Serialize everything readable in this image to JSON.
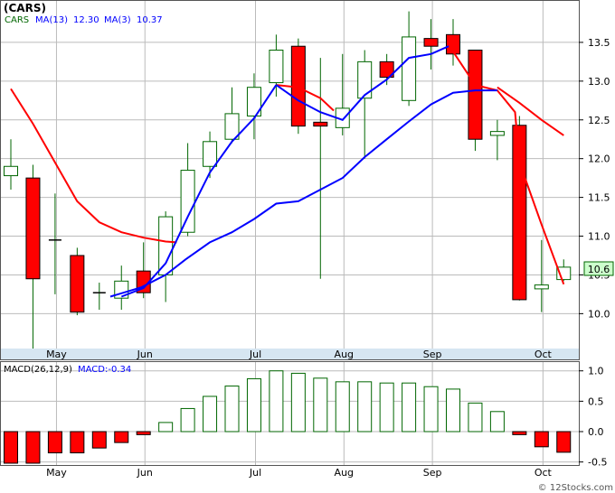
{
  "chart_data": [
    {
      "type": "candlestick",
      "title": "(CARS)",
      "legend": [
        {
          "label": "MA(13)",
          "value": "12.30",
          "color": "#0000ff"
        },
        {
          "label": "MA(3)",
          "value": "10.37",
          "color": "#ff0000"
        }
      ],
      "last_price_label": "10.6",
      "y_ticks": [
        "13.5",
        "13.0",
        "12.5",
        "12.0",
        "11.5",
        "11.0",
        "10.5",
        "10.0"
      ],
      "ylim": [
        9.55,
        14.0
      ],
      "x_labels": [
        {
          "label": "May",
          "i": 1
        },
        {
          "label": "Jun",
          "i": 5
        },
        {
          "label": "Jul",
          "i": 10
        },
        {
          "label": "Aug",
          "i": 14
        },
        {
          "label": "Sep",
          "i": 18
        },
        {
          "label": "Oct",
          "i": 23
        }
      ],
      "candles": [
        {
          "o": 11.78,
          "c": 11.9,
          "h": 12.25,
          "l": 11.6
        },
        {
          "o": 11.75,
          "c": 10.45,
          "h": 11.92,
          "l": 9.55
        },
        {
          "o": 10.95,
          "c": 10.95,
          "h": 11.55,
          "l": 10.25
        },
        {
          "o": 10.75,
          "c": 10.02,
          "h": 10.85,
          "l": 9.98
        },
        {
          "o": 10.27,
          "c": 10.27,
          "h": 10.4,
          "l": 10.05
        },
        {
          "o": 10.2,
          "c": 10.42,
          "h": 10.62,
          "l": 10.05
        },
        {
          "o": 10.55,
          "c": 10.27,
          "h": 10.92,
          "l": 10.2
        },
        {
          "o": 10.5,
          "c": 11.25,
          "h": 11.32,
          "l": 10.15
        },
        {
          "o": 11.05,
          "c": 11.85,
          "h": 12.2,
          "l": 11.0
        },
        {
          "o": 11.9,
          "c": 12.22,
          "h": 12.35,
          "l": 11.75
        },
        {
          "o": 12.25,
          "c": 12.58,
          "h": 12.92,
          "l": 12.2
        },
        {
          "o": 12.55,
          "c": 12.92,
          "h": 13.1,
          "l": 12.25
        },
        {
          "o": 12.98,
          "c": 13.4,
          "h": 13.6,
          "l": 12.8
        },
        {
          "o": 13.45,
          "c": 12.42,
          "h": 13.55,
          "l": 12.32
        },
        {
          "o": 12.47,
          "c": 12.42,
          "h": 13.3,
          "l": 10.45
        },
        {
          "o": 12.4,
          "c": 12.65,
          "h": 13.35,
          "l": 12.3
        },
        {
          "o": 12.78,
          "c": 13.25,
          "h": 13.4,
          "l": 12.0
        },
        {
          "o": 13.25,
          "c": 13.05,
          "h": 13.35,
          "l": 12.95
        },
        {
          "o": 12.75,
          "c": 13.57,
          "h": 13.9,
          "l": 12.68
        },
        {
          "o": 13.55,
          "c": 13.45,
          "h": 13.8,
          "l": 13.15
        },
        {
          "o": 13.6,
          "c": 13.35,
          "h": 13.8,
          "l": 13.2
        },
        {
          "o": 13.4,
          "c": 12.25,
          "h": 13.4,
          "l": 12.1
        },
        {
          "o": 12.3,
          "c": 12.35,
          "h": 12.5,
          "l": 11.98
        },
        {
          "o": 12.43,
          "c": 10.18,
          "h": 12.55,
          "l": 10.17
        },
        {
          "o": 10.32,
          "c": 10.37,
          "h": 10.95,
          "l": 10.02
        },
        {
          "o": 10.44,
          "c": 10.6,
          "h": 10.7,
          "l": 10.42
        }
      ],
      "ma13": [
        {
          "i": 5,
          "v": 10.22
        },
        {
          "i": 6,
          "v": 10.33
        },
        {
          "i": 7,
          "v": 10.65
        },
        {
          "i": 8,
          "v": 11.25
        },
        {
          "i": 9,
          "v": 11.82
        },
        {
          "i": 10,
          "v": 12.22
        },
        {
          "i": 11,
          "v": 12.52
        },
        {
          "i": 12,
          "v": 12.95
        }
      ],
      "ma13_late": [
        {
          "i": 4.5,
          "v": 10.22
        },
        {
          "i": 5.9,
          "v": 10.34
        },
        {
          "i": 7.0,
          "v": 10.5
        },
        {
          "i": 7.9,
          "v": 10.7
        },
        {
          "i": 9.0,
          "v": 10.92
        },
        {
          "i": 10.0,
          "v": 11.05
        },
        {
          "i": 11.0,
          "v": 11.22
        },
        {
          "i": 12.0,
          "v": 11.42
        },
        {
          "i": 13.0,
          "v": 11.45
        },
        {
          "i": 14.0,
          "v": 11.6
        },
        {
          "i": 15.0,
          "v": 11.75
        },
        {
          "i": 16.0,
          "v": 12.02
        },
        {
          "i": 17.0,
          "v": 12.25
        },
        {
          "i": 18.0,
          "v": 12.48
        },
        {
          "i": 19.0,
          "v": 12.7
        },
        {
          "i": 20.0,
          "v": 12.85
        },
        {
          "i": 21.0,
          "v": 12.88
        },
        {
          "i": 22.0,
          "v": 12.88
        }
      ],
      "ma13_mid": [
        {
          "i": 12.0,
          "v": 12.95
        },
        {
          "i": 13.0,
          "v": 12.75
        },
        {
          "i": 14.0,
          "v": 12.6
        },
        {
          "i": 15.0,
          "v": 12.5
        },
        {
          "i": 16.0,
          "v": 12.82
        },
        {
          "i": 17.0,
          "v": 13.02
        },
        {
          "i": 18.0,
          "v": 13.3
        },
        {
          "i": 19.0,
          "v": 13.35
        },
        {
          "i": 19.8,
          "v": 13.45
        }
      ],
      "ma3": [
        {
          "i": 0,
          "v": 12.9
        },
        {
          "i": 1,
          "v": 12.45
        },
        {
          "i": 2,
          "v": 11.95
        },
        {
          "i": 3,
          "v": 11.45
        },
        {
          "i": 4,
          "v": 11.18
        },
        {
          "i": 5,
          "v": 11.05
        },
        {
          "i": 6,
          "v": 10.98
        },
        {
          "i": 7,
          "v": 10.93
        },
        {
          "i": 7.5,
          "v": 10.92
        },
        {
          "i": 12.0,
          "v": 12.95
        },
        {
          "i": 13.0,
          "v": 12.92
        },
        {
          "i": 14.0,
          "v": 12.78
        },
        {
          "i": 14.6,
          "v": 12.62
        },
        {
          "i": 20.0,
          "v": 13.38
        },
        {
          "i": 21.0,
          "v": 12.95
        },
        {
          "i": 22.0,
          "v": 12.88
        },
        {
          "i": 22.8,
          "v": 12.6
        },
        {
          "i": 23.0,
          "v": 11.95
        },
        {
          "i": 24.0,
          "v": 11.15
        },
        {
          "i": 25.0,
          "v": 10.38
        }
      ],
      "ma3_right": [
        {
          "i": 22.0,
          "v": 12.92
        },
        {
          "i": 23.0,
          "v": 12.72
        },
        {
          "i": 24.0,
          "v": 12.5
        },
        {
          "i": 25.0,
          "v": 12.3
        }
      ]
    },
    {
      "type": "bar",
      "title": "MACD(26,12,9)",
      "legend_label": "MACD:-0.34",
      "y_ticks": [
        "1.0",
        "0.5",
        "0.0",
        "-0.5"
      ],
      "ylim": [
        -0.55,
        1.1
      ],
      "values": [
        -0.52,
        -0.52,
        -0.35,
        -0.35,
        -0.27,
        -0.18,
        -0.05,
        0.15,
        0.38,
        0.58,
        0.75,
        0.87,
        1.0,
        0.96,
        0.88,
        0.82,
        0.82,
        0.8,
        0.8,
        0.74,
        0.7,
        0.47,
        0.33,
        -0.05,
        -0.25,
        -0.34
      ]
    }
  ],
  "watermark": "© 12Stocks.com"
}
